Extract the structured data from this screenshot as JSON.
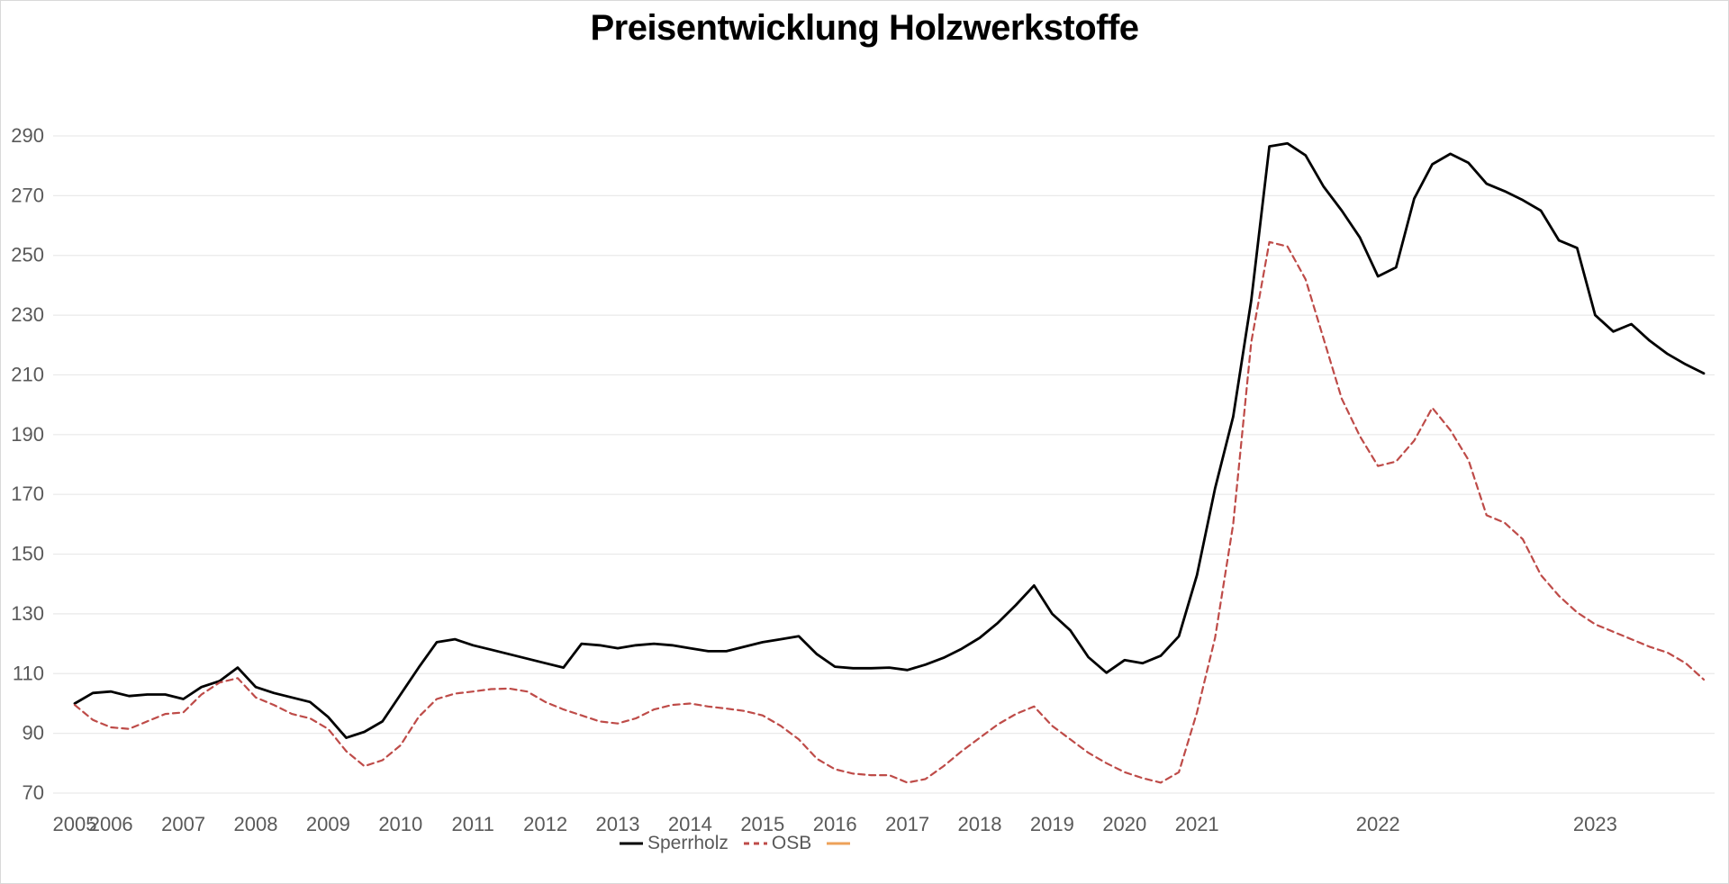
{
  "window": {
    "background": "#FFFFFF",
    "border_color": "#D9D9D9"
  },
  "chart_data": {
    "type": "line",
    "title": "Preisentwicklung Holzwerkstoffe",
    "title_color": "#000000",
    "grid": {
      "on": true,
      "color": "#E9E9E9"
    },
    "legend_position": "bottom",
    "y_axis": {
      "min": 70,
      "max": 290,
      "step": 20,
      "tick_labels": [
        290,
        270,
        250,
        230,
        210,
        190,
        170,
        150,
        130,
        110,
        90,
        70
      ],
      "tick_color": "#595959"
    },
    "x_axis": {
      "tick_color": "#595959",
      "note_frequency": "quarterly 2005Q3-2021Q1, monthly Apr2021-Jul2023",
      "year_ticks": [
        [
          "2005",
          0
        ],
        [
          "2006",
          2
        ],
        [
          "2007",
          6
        ],
        [
          "2008",
          10
        ],
        [
          "2009",
          14
        ],
        [
          "2010",
          18
        ],
        [
          "2011",
          22
        ],
        [
          "2012",
          26
        ],
        [
          "2013",
          30
        ],
        [
          "2014",
          34
        ],
        [
          "2015",
          38
        ],
        [
          "2016",
          42
        ],
        [
          "2017",
          46
        ],
        [
          "2018",
          50
        ],
        [
          "2019",
          54
        ],
        [
          "2020",
          58
        ],
        [
          "2021",
          62
        ],
        [
          "2022",
          72
        ],
        [
          "2023",
          84
        ]
      ]
    },
    "point_count": 91,
    "series": [
      {
        "name": "Sperrholz",
        "color": "#000000",
        "style": "solid",
        "width": 2.8,
        "values": [
          100,
          103.5,
          104,
          102.5,
          103,
          103,
          101.5,
          105.5,
          107.5,
          112,
          105.5,
          103.5,
          102,
          100.5,
          95.5,
          88.5,
          90.5,
          94,
          103,
          112,
          120.5,
          121.5,
          119.5,
          118,
          116.5,
          115,
          113.5,
          112,
          120,
          119.5,
          118.5,
          119.5,
          120,
          119.5,
          118.5,
          117.5,
          117.5,
          119,
          120.5,
          121.5,
          122.5,
          116.5,
          112.3,
          111.8,
          111.8,
          112,
          111.2,
          113,
          115.3,
          118.3,
          122,
          127,
          133,
          139.5,
          130,
          124.5,
          115.5,
          110.3,
          114.5,
          113.5,
          116,
          122.5,
          143,
          172,
          196,
          235,
          286.5,
          287.5,
          283.5,
          273,
          265,
          256,
          243,
          246,
          269,
          280.5,
          284,
          281,
          274,
          271.5,
          268.5,
          265,
          255,
          252.5,
          230,
          224.5,
          227,
          221.5,
          217,
          213.5,
          210.5
        ]
      },
      {
        "name": "OSB",
        "color": "#BE4B48",
        "style": "dashed",
        "width": 2.2,
        "values": [
          99.5,
          94.5,
          92,
          91.5,
          94,
          96.5,
          97,
          103,
          107,
          108.5,
          102,
          99.5,
          96.5,
          95,
          91.5,
          84,
          79,
          81,
          86,
          95.5,
          101.5,
          103.3,
          104,
          104.8,
          105,
          104,
          100.5,
          98,
          96,
          94,
          93.3,
          95,
          98,
          99.5,
          100,
          99,
          98.3,
          97.5,
          96,
          92.5,
          88,
          81.5,
          78,
          76.5,
          76,
          76,
          73.5,
          74.7,
          79,
          84,
          88.5,
          93,
          96.5,
          99,
          92.5,
          88,
          83.5,
          80,
          77,
          75,
          73.5,
          77,
          97,
          122,
          160,
          221,
          254.5,
          253,
          242,
          222,
          202,
          189.5,
          179.5,
          181,
          188,
          199,
          191.5,
          181.5,
          163,
          160.5,
          155,
          143,
          136,
          130.5,
          126.5,
          124,
          121.5,
          119,
          117,
          113.5,
          108
        ]
      },
      {
        "name": "",
        "color": "#EDA159",
        "style": "solid",
        "width": 2.2,
        "values": []
      }
    ]
  }
}
